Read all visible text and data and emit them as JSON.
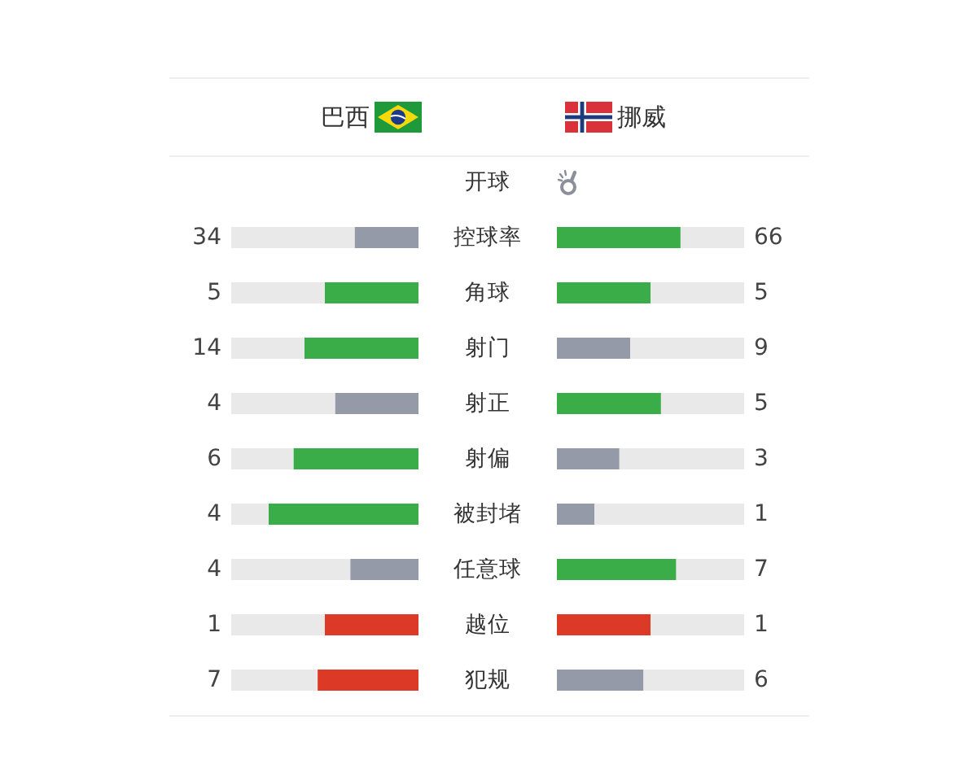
{
  "chart_data": {
    "type": "other",
    "legend": "top",
    "data_labels": true,
    "categories": [
      "开球",
      "控球率",
      "角球",
      "射门",
      "射正",
      "射偏",
      "被封堵",
      "任意球",
      "越位",
      "犯规"
    ],
    "series": [
      {
        "name": "巴西",
        "values": [
          null,
          34,
          5,
          14,
          4,
          6,
          4,
          4,
          1,
          7
        ],
        "colors": [
          null,
          "#959aa9",
          "#3aad48",
          "#3aad48",
          "#959aa9",
          "#3aad48",
          "#3aad48",
          "#959aa9",
          "#dc3a26",
          "#dc3a26"
        ]
      },
      {
        "name": "挪威",
        "values": [
          null,
          66,
          5,
          9,
          5,
          3,
          1,
          7,
          1,
          6
        ],
        "colors": [
          null,
          "#3aad48",
          "#3aad48",
          "#959aa9",
          "#3aad48",
          "#959aa9",
          "#959aa9",
          "#3aad48",
          "#dc3a26",
          "#959aa9"
        ]
      }
    ]
  }
}
